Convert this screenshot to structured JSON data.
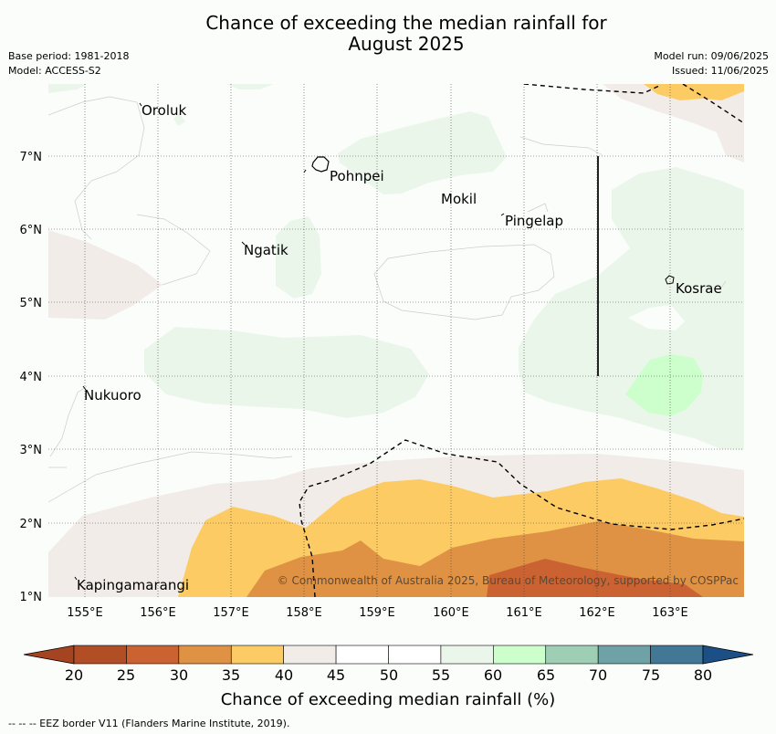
{
  "title": {
    "line1": "Chance of exceeding the median rainfall for",
    "line2": "August 2025"
  },
  "meta": {
    "base_period": "Base period: 1981-2018",
    "model": "Model: ACCESS-S2",
    "model_run": "Model run: 09/06/2025",
    "issued": "Issued: 11/06/2025"
  },
  "map": {
    "x_ticks": [
      "155°E",
      "156°E",
      "157°E",
      "158°E",
      "159°E",
      "160°E",
      "161°E",
      "162°E",
      "163°E"
    ],
    "y_ticks": [
      "7°N",
      "6°N",
      "5°N",
      "4°N",
      "3°N",
      "2°N",
      "1°N"
    ],
    "places": [
      "Oroluk",
      "Pohnpei",
      "Mokil",
      "Pingelap",
      "Ngatik",
      "Kosrae",
      "Nukuoro",
      "Kapingamarangi"
    ],
    "copyright": "© Commonwealth of Australia 2025, Bureau of Meteorology, supported by COSPPac"
  },
  "colorbar": {
    "ticks": [
      "20",
      "25",
      "30",
      "35",
      "40",
      "45",
      "50",
      "55",
      "60",
      "65",
      "70",
      "75",
      "80"
    ],
    "colors": [
      "#a54420",
      "#b14e26",
      "#ca6232",
      "#df9244",
      "#fdcb64",
      "#f1ece7",
      "#ffffff",
      "#ffffff",
      "#ebf6eb",
      "#ccffcc",
      "#9ecfb5",
      "#6fa2a6",
      "#427895",
      "#1c4f86"
    ],
    "label": "Chance of exceeding median rainfall (%)"
  },
  "footer": "--  --  -- EEZ border V11 (Flanders Marine Institute, 2019)."
}
